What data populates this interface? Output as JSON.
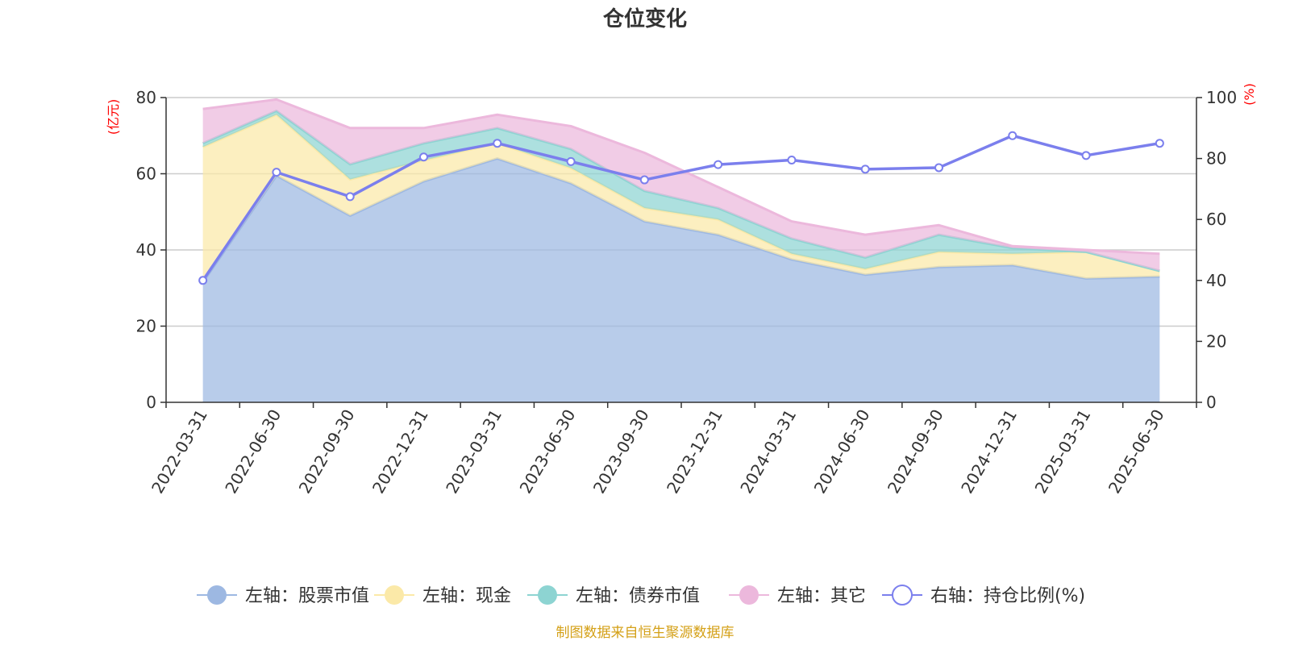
{
  "chart_data": {
    "type": "area",
    "title": "仓位变化",
    "left_unit": "(亿元)",
    "right_unit": "(%)",
    "categories": [
      "2022-03-31",
      "2022-06-30",
      "2022-09-30",
      "2022-12-31",
      "2023-03-31",
      "2023-06-30",
      "2023-09-30",
      "2023-12-31",
      "2024-03-31",
      "2024-06-30",
      "2024-09-30",
      "2024-12-31",
      "2025-03-31",
      "2025-06-30"
    ],
    "left_ylim": [
      0,
      80
    ],
    "left_ticks": [
      "0",
      "20",
      "40",
      "60",
      "80"
    ],
    "right_ylim": [
      0,
      100
    ],
    "right_ticks": [
      "0",
      "20",
      "40",
      "60",
      "80",
      "100"
    ],
    "stacked_series": [
      {
        "name": "左轴：股票市值",
        "color": "#9db8e2",
        "values": [
          31.5,
          59.5,
          49.0,
          58.0,
          64.0,
          57.5,
          47.5,
          44.0,
          37.5,
          33.5,
          35.5,
          36.0,
          32.5,
          33.0
        ]
      },
      {
        "name": "左轴：现金",
        "color": "#fbe9a8",
        "values": [
          35.5,
          16.0,
          9.5,
          5.5,
          4.0,
          4.0,
          3.5,
          4.0,
          1.5,
          1.5,
          4.0,
          3.0,
          7.0,
          1.5
        ]
      },
      {
        "name": "左轴：债券市值",
        "color": "#8dd4d2",
        "values": [
          1.0,
          1.0,
          4.0,
          4.5,
          4.0,
          5.0,
          4.5,
          3.0,
          4.0,
          3.0,
          4.5,
          1.5,
          0.0,
          0.0
        ]
      },
      {
        "name": "左轴：其它",
        "color": "#ecb8dc",
        "values": [
          9.0,
          3.0,
          9.5,
          4.0,
          3.5,
          6.0,
          10.0,
          5.5,
          4.5,
          6.0,
          2.5,
          0.5,
          0.5,
          4.5
        ]
      }
    ],
    "line_series": {
      "name": "右轴：持仓比例(%)",
      "color": "#7b7fed",
      "values": [
        40.0,
        75.5,
        67.5,
        80.5,
        85.0,
        79.0,
        73.0,
        78.0,
        79.5,
        76.5,
        77.0,
        87.5,
        81.0,
        85.0
      ]
    },
    "legend_position": "bottom",
    "grid": true,
    "source": "制图数据来自恒生聚源数据库"
  }
}
